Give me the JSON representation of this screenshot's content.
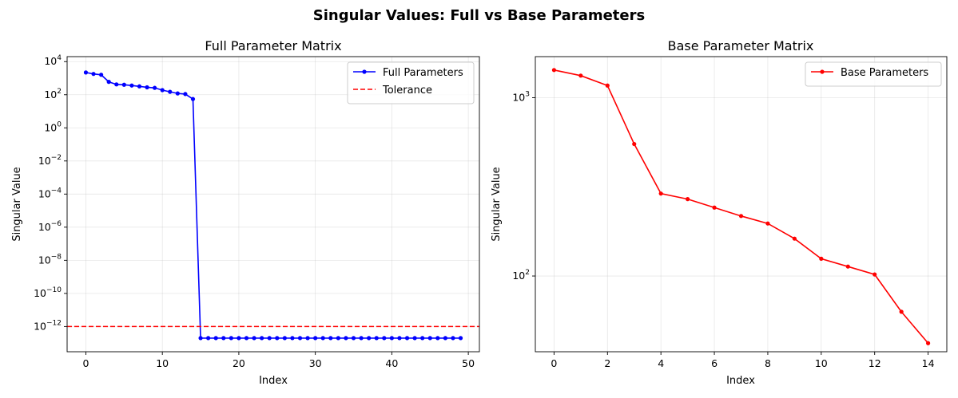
{
  "figure": {
    "suptitle": "Singular Values: Full vs Base Parameters"
  },
  "colors": {
    "full": "#0000ff",
    "tolerance": "#ff0000",
    "base": "#ff0000"
  },
  "chart_data": [
    {
      "type": "line",
      "title": "Full Parameter Matrix",
      "xlabel": "Index",
      "ylabel": "Singular Value",
      "yscale": "log",
      "xlim": [
        -2.45,
        51.45
      ],
      "ylim": [
        3e-14,
        20000
      ],
      "xticks": [
        0,
        10,
        20,
        30,
        40,
        50
      ],
      "xtick_labels": [
        "0",
        "10",
        "20",
        "30",
        "40",
        "50"
      ],
      "yticks": [
        {
          "exp": -12,
          "base": "10",
          "sup": "−12"
        },
        {
          "exp": -10,
          "base": "10",
          "sup": "−10"
        },
        {
          "exp": -8,
          "base": "10",
          "sup": "−8"
        },
        {
          "exp": -6,
          "base": "10",
          "sup": "−6"
        },
        {
          "exp": -4,
          "base": "10",
          "sup": "−4"
        },
        {
          "exp": -2,
          "base": "10",
          "sup": "−2"
        },
        {
          "exp": 0,
          "base": "10",
          "sup": "0"
        },
        {
          "exp": 2,
          "base": "10",
          "sup": "2"
        },
        {
          "exp": 4,
          "base": "10",
          "sup": "4"
        }
      ],
      "grid": true,
      "legend_position": "upper right",
      "series": [
        {
          "name": "Full Parameters",
          "style": "line-with-markers",
          "x": [
            0,
            1,
            2,
            3,
            4,
            5,
            6,
            7,
            8,
            9,
            10,
            11,
            12,
            13,
            14,
            15,
            16,
            17,
            18,
            19,
            20,
            21,
            22,
            23,
            24,
            25,
            26,
            27,
            28,
            29,
            30,
            31,
            32,
            33,
            34,
            35,
            36,
            37,
            38,
            39,
            40,
            41,
            42,
            43,
            44,
            45,
            46,
            47,
            48,
            49
          ],
          "values": [
            2200,
            1800,
            1600,
            600,
            420,
            400,
            360,
            320,
            280,
            260,
            190,
            150,
            120,
            110,
            55,
            2e-13,
            2e-13,
            2e-13,
            2e-13,
            2e-13,
            2e-13,
            2e-13,
            2e-13,
            2e-13,
            2e-13,
            2e-13,
            2e-13,
            2e-13,
            2e-13,
            2e-13,
            2e-13,
            2e-13,
            2e-13,
            2e-13,
            2e-13,
            2e-13,
            2e-13,
            2e-13,
            2e-13,
            2e-13,
            2e-13,
            2e-13,
            2e-13,
            2e-13,
            2e-13,
            2e-13,
            2e-13,
            2e-13,
            2e-13,
            2e-13
          ]
        },
        {
          "name": "Tolerance",
          "style": "dashed-hline",
          "value": 1e-12
        }
      ]
    },
    {
      "type": "line",
      "title": "Base Parameter Matrix",
      "xlabel": "Index",
      "ylabel": "Singular Value",
      "yscale": "log",
      "xlim": [
        -0.7,
        14.7
      ],
      "ylim": [
        37.6,
        1700
      ],
      "xticks": [
        0,
        2,
        4,
        6,
        8,
        10,
        12,
        14
      ],
      "xtick_labels": [
        "0",
        "2",
        "4",
        "6",
        "8",
        "10",
        "12",
        "14"
      ],
      "yticks": [
        {
          "exp": 2,
          "base": "10",
          "sup": "2"
        },
        {
          "exp": 3,
          "base": "10",
          "sup": "3"
        }
      ],
      "grid": true,
      "legend_position": "upper right",
      "series": [
        {
          "name": "Base Parameters",
          "style": "line-with-markers",
          "x": [
            0,
            1,
            2,
            3,
            4,
            5,
            6,
            7,
            8,
            9,
            10,
            11,
            12,
            13,
            14
          ],
          "values": [
            1430,
            1330,
            1170,
            550,
            290,
            270,
            242,
            217,
            197,
            162,
            125,
            113,
            102,
            63,
            42
          ]
        }
      ]
    }
  ]
}
